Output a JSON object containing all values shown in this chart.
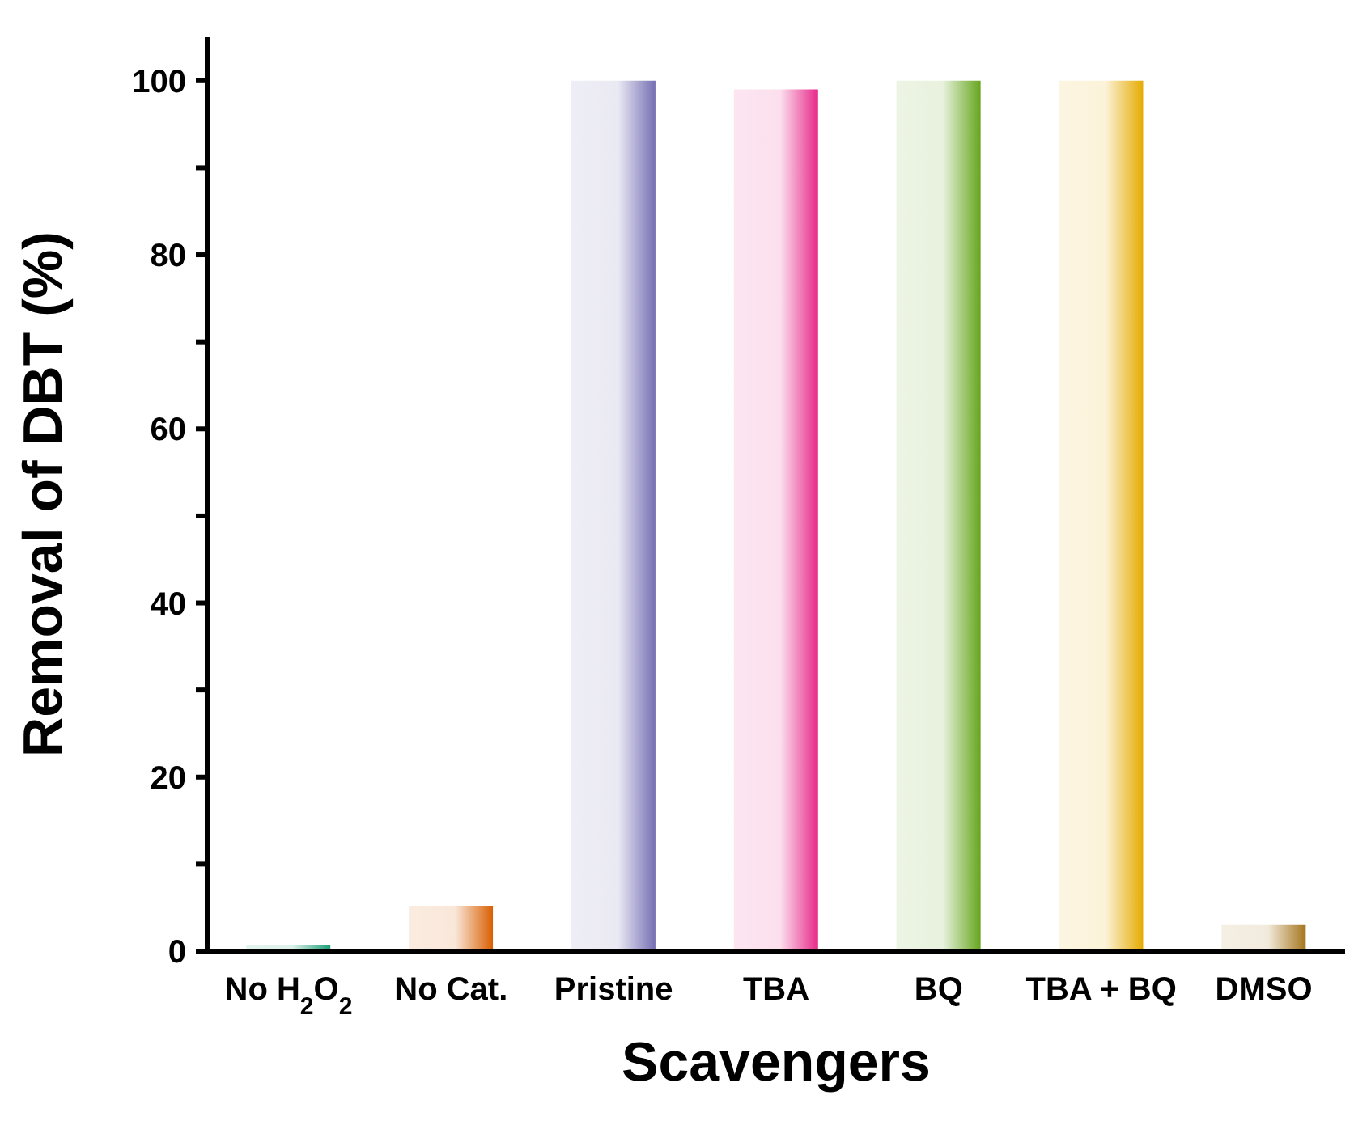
{
  "chart_data": {
    "type": "bar",
    "xlabel": "Scavengers",
    "ylabel": "Removal of DBT (%)",
    "categories": [
      "No H$_{2}$O$_{2}$",
      "No Cat.",
      "Pristine",
      "TBA",
      "BQ",
      "TBA + BQ",
      "DMSO"
    ],
    "values": [
      0.7,
      5.2,
      100,
      99,
      100,
      100,
      3
    ],
    "colors": [
      "#1b9e77",
      "#d95f02",
      "#7570b3",
      "#e7298a",
      "#66a61e",
      "#e6ab02",
      "#a6761d"
    ],
    "ylim": [
      0,
      105
    ],
    "yticks": [
      0,
      {
        "value": 10,
        "label": null
      },
      20,
      {
        "value": 30,
        "label": null
      },
      40,
      {
        "value": 50,
        "label": null
      },
      60,
      {
        "value": 70,
        "label": null
      },
      80,
      {
        "value": 90,
        "label": null
      },
      100
    ],
    "grid": false,
    "legend": false
  }
}
